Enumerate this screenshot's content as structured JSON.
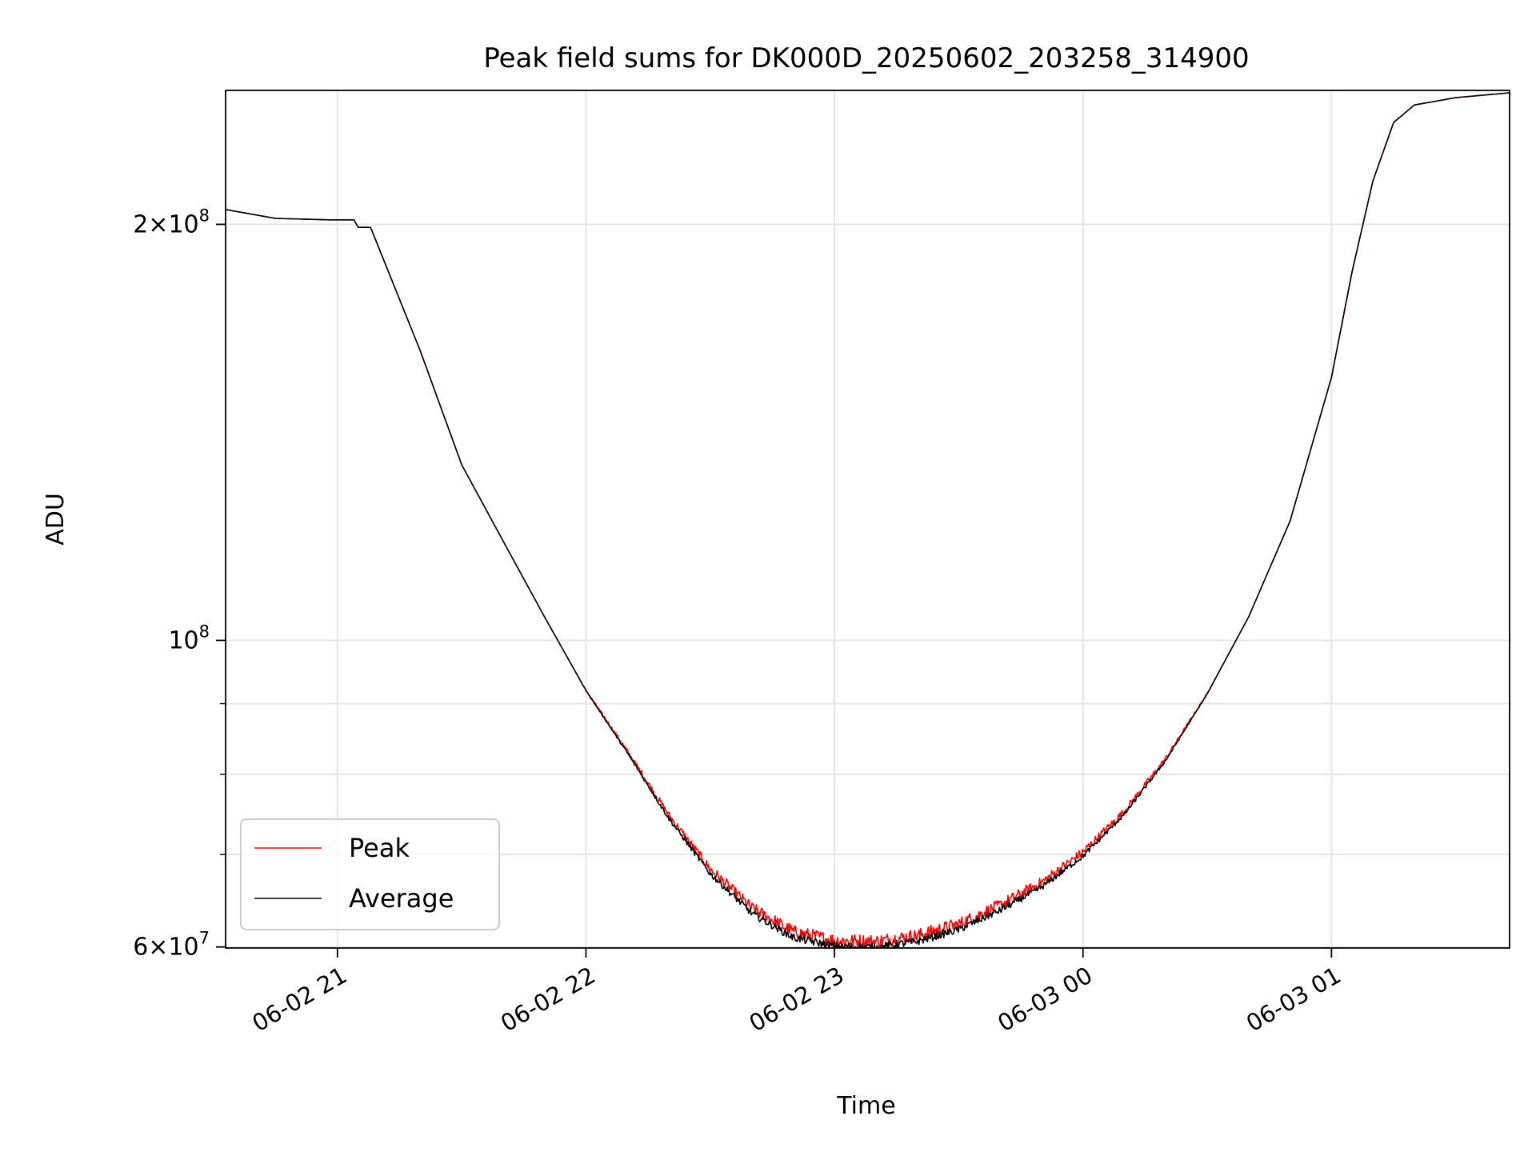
{
  "chart_data": {
    "type": "line",
    "title": "Peak field sums for DK000D_20250602_203258_314900",
    "xlabel": "Time",
    "ylabel": "ADU",
    "y_scale": "log",
    "ylim": [
      59900000,
      250000000
    ],
    "xlim": [
      "2025-06-02 20:33",
      "2025-06-03 01:43"
    ],
    "grid": true,
    "legend_position": "lower-left",
    "x_ticks": [
      {
        "value": "2025-06-02 21:00",
        "label": "06-02 21"
      },
      {
        "value": "2025-06-02 22:00",
        "label": "06-02 22"
      },
      {
        "value": "2025-06-02 23:00",
        "label": "06-02 23"
      },
      {
        "value": "2025-06-03 00:00",
        "label": "06-03 00"
      },
      {
        "value": "2025-06-03 01:00",
        "label": "06-03 01"
      }
    ],
    "y_major_ticks": [
      {
        "value": 60000000,
        "mantissa": "6",
        "exponent": "7"
      },
      {
        "value": 100000000,
        "mantissa": "",
        "exponent": "8"
      },
      {
        "value": 200000000,
        "mantissa": "2",
        "exponent": "8"
      }
    ],
    "y_minor_ticks": [
      70000000,
      80000000,
      90000000
    ],
    "series": [
      {
        "name": "Peak",
        "color": "#ff0000",
        "noise": 0.012,
        "offset": 0.006,
        "points": [
          [
            "2025-06-02 20:33",
            205000000
          ],
          [
            "2025-06-02 20:45",
            202000000
          ],
          [
            "2025-06-02 20:58",
            201500000
          ],
          [
            "2025-06-02 21:04",
            201500000
          ],
          [
            "2025-06-02 21:05",
            199000000
          ],
          [
            "2025-06-02 21:08",
            199000000
          ],
          [
            "2025-06-02 21:20",
            162000000
          ],
          [
            "2025-06-02 21:30",
            134000000
          ],
          [
            "2025-06-02 21:40",
            118000000
          ],
          [
            "2025-06-02 21:50",
            104000000
          ],
          [
            "2025-06-02 22:00",
            92000000
          ],
          [
            "2025-06-02 22:10",
            83000000
          ],
          [
            "2025-06-02 22:20",
            74500000
          ],
          [
            "2025-06-02 22:30",
            68000000
          ],
          [
            "2025-06-02 22:40",
            63700000
          ],
          [
            "2025-06-02 22:50",
            61200000
          ],
          [
            "2025-06-02 23:00",
            60300000
          ],
          [
            "2025-06-02 23:10",
            60200000
          ],
          [
            "2025-06-02 23:20",
            60800000
          ],
          [
            "2025-06-02 23:30",
            62000000
          ],
          [
            "2025-06-02 23:40",
            64000000
          ],
          [
            "2025-06-02 23:50",
            66500000
          ],
          [
            "2025-06-03 00:00",
            70000000
          ],
          [
            "2025-06-03 00:10",
            75000000
          ],
          [
            "2025-06-03 00:20",
            82000000
          ],
          [
            "2025-06-03 00:30",
            91500000
          ],
          [
            "2025-06-03 00:40",
            104000000
          ],
          [
            "2025-06-03 00:50",
            122000000
          ],
          [
            "2025-06-03 01:00",
            155000000
          ],
          [
            "2025-06-03 01:05",
            185000000
          ],
          [
            "2025-06-03 01:10",
            215000000
          ],
          [
            "2025-06-03 01:15",
            237000000
          ],
          [
            "2025-06-03 01:20",
            244000000
          ],
          [
            "2025-06-03 01:30",
            247000000
          ],
          [
            "2025-06-03 01:43",
            249000000
          ]
        ]
      },
      {
        "name": "Average",
        "color": "#000000",
        "noise": 0.007,
        "offset": -0.004,
        "points": [
          [
            "2025-06-02 20:33",
            205000000
          ],
          [
            "2025-06-02 20:45",
            202000000
          ],
          [
            "2025-06-02 20:58",
            201500000
          ],
          [
            "2025-06-02 21:04",
            201500000
          ],
          [
            "2025-06-02 21:05",
            199000000
          ],
          [
            "2025-06-02 21:08",
            199000000
          ],
          [
            "2025-06-02 21:20",
            162000000
          ],
          [
            "2025-06-02 21:30",
            134000000
          ],
          [
            "2025-06-02 21:40",
            118000000
          ],
          [
            "2025-06-02 21:50",
            104000000
          ],
          [
            "2025-06-02 22:00",
            92000000
          ],
          [
            "2025-06-02 22:10",
            83000000
          ],
          [
            "2025-06-02 22:20",
            74500000
          ],
          [
            "2025-06-02 22:30",
            68000000
          ],
          [
            "2025-06-02 22:40",
            63700000
          ],
          [
            "2025-06-02 22:50",
            61200000
          ],
          [
            "2025-06-02 23:00",
            60300000
          ],
          [
            "2025-06-02 23:10",
            60200000
          ],
          [
            "2025-06-02 23:20",
            60800000
          ],
          [
            "2025-06-02 23:30",
            62000000
          ],
          [
            "2025-06-02 23:40",
            64000000
          ],
          [
            "2025-06-02 23:50",
            66500000
          ],
          [
            "2025-06-03 00:00",
            70000000
          ],
          [
            "2025-06-03 00:10",
            75000000
          ],
          [
            "2025-06-03 00:20",
            82000000
          ],
          [
            "2025-06-03 00:30",
            91500000
          ],
          [
            "2025-06-03 00:40",
            104000000
          ],
          [
            "2025-06-03 00:50",
            122000000
          ],
          [
            "2025-06-03 01:00",
            155000000
          ],
          [
            "2025-06-03 01:05",
            185000000
          ],
          [
            "2025-06-03 01:10",
            215000000
          ],
          [
            "2025-06-03 01:15",
            237000000
          ],
          [
            "2025-06-03 01:20",
            244000000
          ],
          [
            "2025-06-03 01:30",
            247000000
          ],
          [
            "2025-06-03 01:43",
            249000000
          ]
        ]
      }
    ]
  }
}
